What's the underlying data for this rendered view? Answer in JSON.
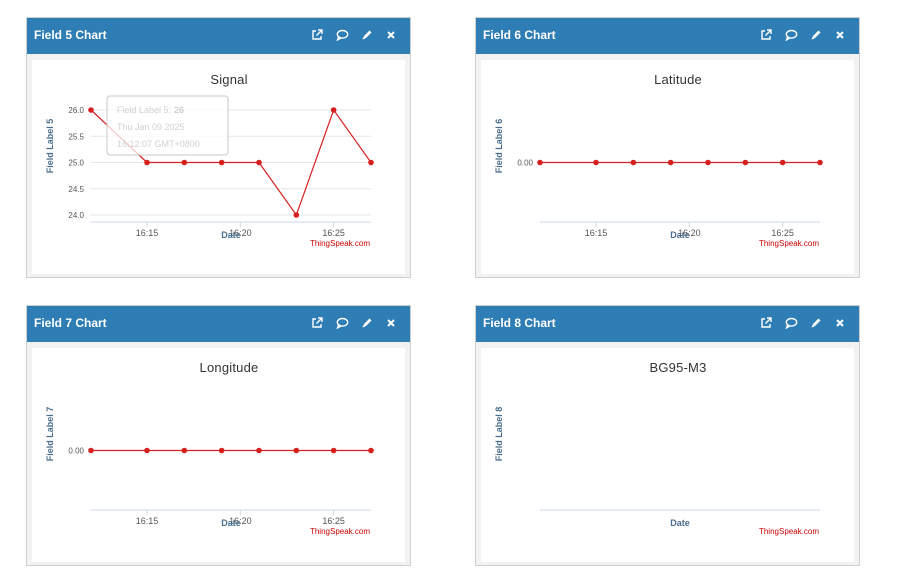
{
  "panels": [
    {
      "title": "Field 5 Chart",
      "chart_title": "Signal",
      "y_label": "Field Label 5",
      "x_label": "Date",
      "credit": "ThingSpeak.com",
      "icons": [
        "external-link-icon",
        "comment-icon",
        "pencil-icon",
        "close-icon"
      ]
    },
    {
      "title": "Field 6 Chart",
      "chart_title": "Latitude",
      "y_label": "Field Label 6",
      "x_label": "Date",
      "credit": "ThingSpeak.com",
      "icons": [
        "external-link-icon",
        "comment-icon",
        "pencil-icon",
        "close-icon"
      ]
    },
    {
      "title": "Field 7 Chart",
      "chart_title": "Longitude",
      "y_label": "Field Label 7",
      "x_label": "Date",
      "credit": "ThingSpeak.com",
      "icons": [
        "external-link-icon",
        "comment-icon",
        "pencil-icon",
        "close-icon"
      ]
    },
    {
      "title": "Field 8 Chart",
      "chart_title": "BG95-M3",
      "y_label": "Field Label 8",
      "x_label": "Date",
      "credit": "ThingSpeak.com",
      "icons": [
        "external-link-icon",
        "comment-icon",
        "pencil-icon",
        "close-icon"
      ]
    }
  ],
  "tooltip": {
    "line1_label": "Field Label 5:",
    "line1_value": "26",
    "line2": "Thu Jan 09 2025",
    "line3": "16:12:07 GMT+0800"
  },
  "colors": {
    "header": "#2e7db4",
    "series": "#d62020"
  },
  "chart_data": [
    {
      "type": "line",
      "title": "Signal",
      "xlabel": "Date",
      "ylabel": "Field Label 5",
      "x": [
        "16:12",
        "16:15",
        "16:17",
        "16:19",
        "16:21",
        "16:23",
        "16:25",
        "16:27"
      ],
      "values": [
        26,
        25,
        25,
        25,
        25,
        24,
        26,
        25
      ],
      "ylim": [
        24,
        26
      ],
      "y_ticks": [
        "26.0",
        "25.5",
        "25.0",
        "24.5",
        "24.0"
      ],
      "x_ticks": [
        "16:15",
        "16:20",
        "16:25"
      ],
      "grid": true
    },
    {
      "type": "line",
      "title": "Latitude",
      "xlabel": "Date",
      "ylabel": "Field Label 6",
      "x": [
        "16:12",
        "16:15",
        "16:17",
        "16:19",
        "16:21",
        "16:23",
        "16:25",
        "16:27"
      ],
      "values": [
        0,
        0,
        0,
        0,
        0,
        0,
        0,
        0
      ],
      "y_ticks": [
        "0.00"
      ],
      "x_ticks": [
        "16:15",
        "16:20",
        "16:25"
      ],
      "grid": false
    },
    {
      "type": "line",
      "title": "Longitude",
      "xlabel": "Date",
      "ylabel": "Field Label 7",
      "x": [
        "16:12",
        "16:15",
        "16:17",
        "16:19",
        "16:21",
        "16:23",
        "16:25",
        "16:27"
      ],
      "values": [
        0,
        0,
        0,
        0,
        0,
        0,
        0,
        0
      ],
      "y_ticks": [
        "0.00"
      ],
      "x_ticks": [
        "16:15",
        "16:20",
        "16:25"
      ],
      "grid": false
    },
    {
      "type": "line",
      "title": "BG95-M3",
      "xlabel": "Date",
      "ylabel": "Field Label 8",
      "x": [],
      "values": [],
      "y_ticks": [],
      "x_ticks": [],
      "grid": false
    }
  ]
}
